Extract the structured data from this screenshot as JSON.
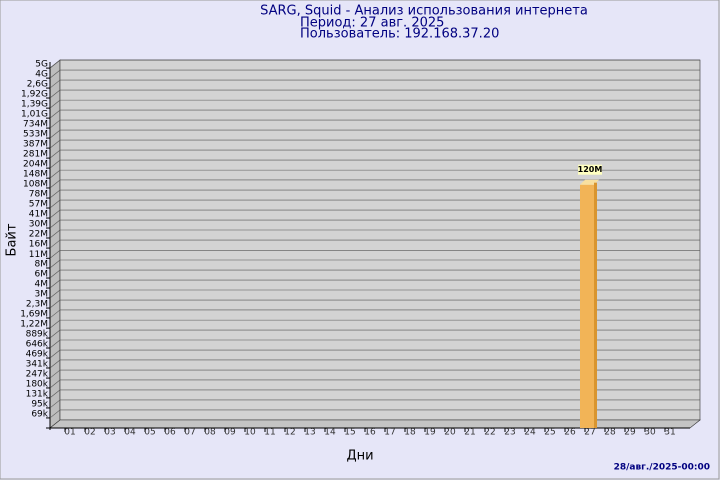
{
  "chart_data": {
    "type": "bar",
    "title": "SARG, Squid - Анализ использования интернета",
    "subtitle": "Период: 27 авг. 2025",
    "user": "Пользователь: 192.168.37.20",
    "ylabel": "Байт",
    "xlabel": "Дни",
    "footer": "28/авг./2025-00:00",
    "log_scale": true,
    "grid": true,
    "color": "#f2b457",
    "categories": [
      "01",
      "02",
      "03",
      "04",
      "05",
      "06",
      "07",
      "08",
      "09",
      "10",
      "11",
      "12",
      "13",
      "14",
      "15",
      "16",
      "17",
      "18",
      "19",
      "20",
      "21",
      "22",
      "23",
      "24",
      "25",
      "26",
      "27",
      "28",
      "29",
      "30",
      "31"
    ],
    "values": [
      null,
      null,
      null,
      null,
      null,
      null,
      null,
      null,
      null,
      null,
      null,
      null,
      null,
      null,
      null,
      null,
      null,
      null,
      null,
      null,
      null,
      null,
      null,
      null,
      null,
      null,
      120000000,
      null,
      null,
      null,
      null
    ],
    "value_labels": [
      null,
      null,
      null,
      null,
      null,
      null,
      null,
      null,
      null,
      null,
      null,
      null,
      null,
      null,
      null,
      null,
      null,
      null,
      null,
      null,
      null,
      null,
      null,
      null,
      null,
      null,
      "120M",
      null,
      null,
      null,
      null
    ],
    "ylim": [
      50000,
      5700000000
    ],
    "yticks": [
      {
        "value": 69000,
        "label": "69k"
      },
      {
        "value": 95000,
        "label": "95k"
      },
      {
        "value": 131000,
        "label": "131k"
      },
      {
        "value": 180000,
        "label": "180k"
      },
      {
        "value": 247000,
        "label": "247k"
      },
      {
        "value": 341000,
        "label": "341k"
      },
      {
        "value": 469000,
        "label": "469k"
      },
      {
        "value": 646000,
        "label": "646k"
      },
      {
        "value": 889000,
        "label": "889k"
      },
      {
        "value": 1220000,
        "label": "1,22M"
      },
      {
        "value": 1690000,
        "label": "1,69M"
      },
      {
        "value": 2320000,
        "label": "2,3M"
      },
      {
        "value": 3200000,
        "label": "3M"
      },
      {
        "value": 4400000,
        "label": "4M"
      },
      {
        "value": 6060000,
        "label": "6M"
      },
      {
        "value": 8350000,
        "label": "8M"
      },
      {
        "value": 11400000,
        "label": "11M"
      },
      {
        "value": 15800000,
        "label": "16M"
      },
      {
        "value": 21800000,
        "label": "22M"
      },
      {
        "value": 30000000,
        "label": "30M"
      },
      {
        "value": 41300000,
        "label": "41M"
      },
      {
        "value": 56900000,
        "label": "57M"
      },
      {
        "value": 78300000,
        "label": "78M"
      },
      {
        "value": 108000000,
        "label": "108M"
      },
      {
        "value": 148000000,
        "label": "148M"
      },
      {
        "value": 204000000,
        "label": "204M"
      },
      {
        "value": 281000000,
        "label": "281M"
      },
      {
        "value": 387000000,
        "label": "387M"
      },
      {
        "value": 533000000,
        "label": "533M"
      },
      {
        "value": 734000000,
        "label": "734M"
      },
      {
        "value": 1010000000,
        "label": "1,01G"
      },
      {
        "value": 1390000000,
        "label": "1,39G"
      },
      {
        "value": 1920000000,
        "label": "1,92G"
      },
      {
        "value": 2640000000,
        "label": "2,6G"
      },
      {
        "value": 3630000000,
        "label": "4G"
      },
      {
        "value": 5000000000,
        "label": "5G"
      }
    ]
  }
}
